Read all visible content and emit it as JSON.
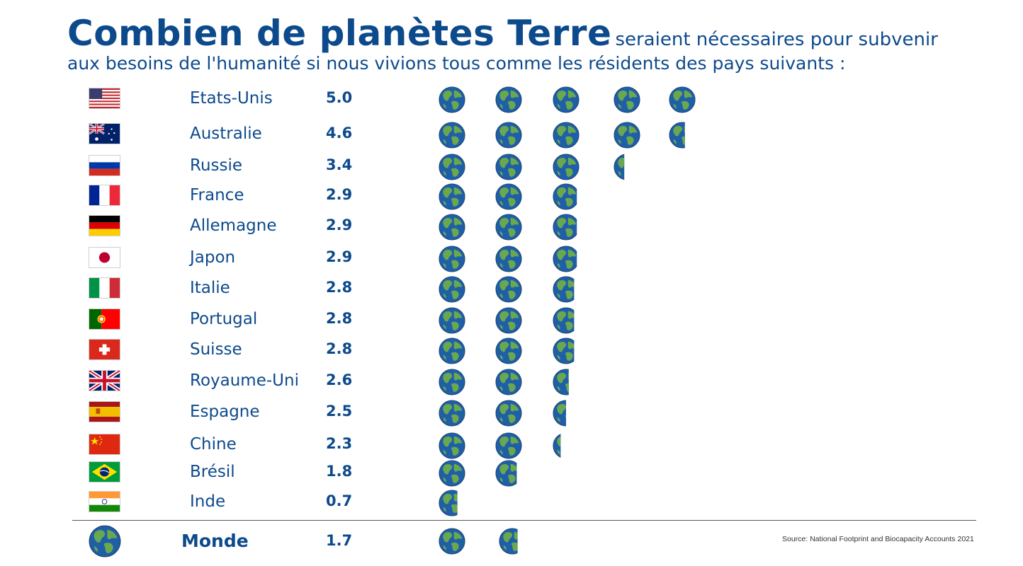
{
  "title": {
    "main": "Combien de planètes Terre",
    "rest": "seraient nécessaires pour subvenir",
    "subtitle": "aux besoins de l'humanité si nous vivions tous comme les résidents des pays suivants :"
  },
  "world": {
    "label": "Monde",
    "value": "1.7",
    "globes": 1.7
  },
  "source": "Source: National Footprint and Biocapacity Accounts 2021",
  "colors": {
    "text": "#0d4a8c",
    "ocean": "#1f5fa8",
    "land": "#6aa84f"
  },
  "chart_data": {
    "type": "pictogram",
    "categories": [
      "Etats-Unis",
      "Australie",
      "Russie",
      "France",
      "Allemagne",
      "Japon",
      "Italie",
      "Portugal",
      "Suisse",
      "Royaume-Uni",
      "Espagne",
      "Chine",
      "Brésil",
      "Inde"
    ],
    "values": [
      5.0,
      4.6,
      3.4,
      2.9,
      2.9,
      2.9,
      2.8,
      2.8,
      2.8,
      2.6,
      2.5,
      2.3,
      1.8,
      0.7
    ],
    "labels": [
      "5.0",
      "4.6",
      "3.4",
      "2.9",
      "2.9",
      "2.9",
      "2.8",
      "2.8",
      "2.8",
      "2.6",
      "2.5",
      "2.3",
      "1.8",
      "0.7"
    ],
    "flags": [
      "us-flag",
      "australia-flag",
      "russia-flag",
      "france-flag",
      "germany-flag",
      "japan-flag",
      "italy-flag",
      "portugal-flag",
      "switzerland-flag",
      "uk-flag",
      "spain-flag",
      "china-flag",
      "brazil-flag",
      "india-flag"
    ],
    "icon": "earth-globe-icon"
  }
}
